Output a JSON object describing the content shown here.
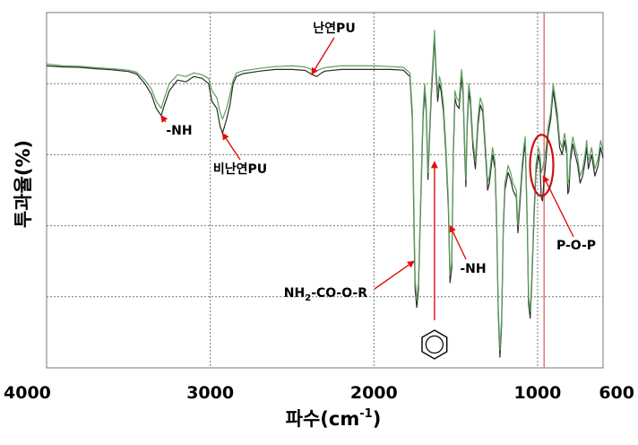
{
  "chart_data": {
    "type": "line",
    "title": "",
    "xlabel": "파수(cm-1)",
    "xlabel_parts": {
      "main": "파수(cm",
      "sup": "-1",
      "close": ")"
    },
    "ylabel": "투과율(%)",
    "xlim": [
      4000,
      600
    ],
    "x_reversed": true,
    "ylim": [
      0,
      100
    ],
    "grid": true,
    "xticks": [
      4000,
      3000,
      2000,
      1000,
      600
    ],
    "xtick_labels": [
      "4000",
      "3000",
      "2000",
      "1000",
      "600"
    ],
    "gridlines_x": [
      3000,
      2000,
      1000
    ],
    "gridlines_y": [
      20,
      40,
      60,
      80
    ],
    "reference_line": {
      "x": 960,
      "color": "#e08080"
    },
    "legend": "none",
    "series": [
      {
        "color": "#2a2a2a",
        "points": [
          [
            4000,
            85
          ],
          [
            3900,
            84.7
          ],
          [
            3800,
            84.6
          ],
          [
            3700,
            84.2
          ],
          [
            3600,
            83.9
          ],
          [
            3500,
            83.4
          ],
          [
            3450,
            82.7
          ],
          [
            3400,
            80
          ],
          [
            3360,
            77
          ],
          [
            3330,
            73
          ],
          [
            3300,
            71
          ],
          [
            3280,
            74
          ],
          [
            3250,
            78
          ],
          [
            3200,
            81
          ],
          [
            3150,
            80.5
          ],
          [
            3100,
            82
          ],
          [
            3050,
            81.5
          ],
          [
            3010,
            80
          ],
          [
            2990,
            75
          ],
          [
            2960,
            73
          ],
          [
            2940,
            68
          ],
          [
            2925,
            66
          ],
          [
            2900,
            70
          ],
          [
            2880,
            74
          ],
          [
            2860,
            80
          ],
          [
            2840,
            82
          ],
          [
            2800,
            82.8
          ],
          [
            2700,
            83.5
          ],
          [
            2600,
            84
          ],
          [
            2500,
            84
          ],
          [
            2420,
            83.7
          ],
          [
            2380,
            82.6
          ],
          [
            2350,
            82
          ],
          [
            2320,
            83
          ],
          [
            2300,
            83.5
          ],
          [
            2200,
            84
          ],
          [
            2100,
            84
          ],
          [
            2000,
            84
          ],
          [
            1900,
            84
          ],
          [
            1820,
            83.8
          ],
          [
            1780,
            82
          ],
          [
            1765,
            70
          ],
          [
            1755,
            40
          ],
          [
            1748,
            22
          ],
          [
            1738,
            17
          ],
          [
            1728,
            22
          ],
          [
            1712,
            50
          ],
          [
            1700,
            70
          ],
          [
            1690,
            78
          ],
          [
            1680,
            72
          ],
          [
            1670,
            53
          ],
          [
            1660,
            65
          ],
          [
            1650,
            76
          ],
          [
            1640,
            84
          ],
          [
            1630,
            93
          ],
          [
            1620,
            82
          ],
          [
            1610,
            75
          ],
          [
            1600,
            80
          ],
          [
            1590,
            78
          ],
          [
            1575,
            72
          ],
          [
            1560,
            60
          ],
          [
            1545,
            45
          ],
          [
            1535,
            24
          ],
          [
            1525,
            28
          ],
          [
            1515,
            60
          ],
          [
            1505,
            76
          ],
          [
            1495,
            74
          ],
          [
            1480,
            73
          ],
          [
            1465,
            82
          ],
          [
            1455,
            77
          ],
          [
            1445,
            60
          ],
          [
            1438,
            51
          ],
          [
            1430,
            68
          ],
          [
            1420,
            78
          ],
          [
            1410,
            74
          ],
          [
            1395,
            62
          ],
          [
            1380,
            56
          ],
          [
            1365,
            68
          ],
          [
            1350,
            74
          ],
          [
            1335,
            72
          ],
          [
            1315,
            58
          ],
          [
            1305,
            50
          ],
          [
            1295,
            52
          ],
          [
            1275,
            60
          ],
          [
            1260,
            56
          ],
          [
            1250,
            40
          ],
          [
            1240,
            15
          ],
          [
            1230,
            3
          ],
          [
            1220,
            12
          ],
          [
            1210,
            38
          ],
          [
            1200,
            50
          ],
          [
            1180,
            55
          ],
          [
            1165,
            53
          ],
          [
            1150,
            50
          ],
          [
            1130,
            48
          ],
          [
            1120,
            38
          ],
          [
            1110,
            45
          ],
          [
            1095,
            55
          ],
          [
            1085,
            60
          ],
          [
            1075,
            63
          ],
          [
            1062,
            38
          ],
          [
            1055,
            18
          ],
          [
            1045,
            14
          ],
          [
            1035,
            24
          ],
          [
            1022,
            42
          ],
          [
            1010,
            55
          ],
          [
            995,
            60
          ],
          [
            985,
            57
          ],
          [
            978,
            48
          ],
          [
            970,
            47
          ],
          [
            962,
            52
          ],
          [
            950,
            58
          ],
          [
            935,
            66
          ],
          [
            920,
            70
          ],
          [
            905,
            78
          ],
          [
            895,
            75
          ],
          [
            880,
            70
          ],
          [
            865,
            62
          ],
          [
            850,
            60
          ],
          [
            835,
            64
          ],
          [
            822,
            60
          ],
          [
            815,
            49
          ],
          [
            808,
            50
          ],
          [
            800,
            58
          ],
          [
            785,
            63
          ],
          [
            770,
            60
          ],
          [
            755,
            57
          ],
          [
            740,
            52
          ],
          [
            725,
            54
          ],
          [
            710,
            58
          ],
          [
            700,
            62
          ],
          [
            690,
            56
          ],
          [
            670,
            60
          ],
          [
            650,
            54
          ],
          [
            630,
            57
          ],
          [
            615,
            62
          ],
          [
            600,
            59
          ]
        ]
      },
      {
        "color": "#5fa05f",
        "points": [
          [
            4000,
            85.5
          ],
          [
            3900,
            85
          ],
          [
            3800,
            84.9
          ],
          [
            3700,
            84.5
          ],
          [
            3600,
            84.2
          ],
          [
            3500,
            83.8
          ],
          [
            3450,
            83.2
          ],
          [
            3400,
            81
          ],
          [
            3360,
            78.5
          ],
          [
            3330,
            75
          ],
          [
            3300,
            73
          ],
          [
            3280,
            76
          ],
          [
            3250,
            80
          ],
          [
            3200,
            82.5
          ],
          [
            3150,
            82
          ],
          [
            3100,
            83
          ],
          [
            3050,
            82.5
          ],
          [
            3010,
            81.5
          ],
          [
            2990,
            78
          ],
          [
            2960,
            76
          ],
          [
            2940,
            72
          ],
          [
            2925,
            70
          ],
          [
            2900,
            73
          ],
          [
            2880,
            77
          ],
          [
            2860,
            81
          ],
          [
            2840,
            83
          ],
          [
            2800,
            83.6
          ],
          [
            2700,
            84.3
          ],
          [
            2600,
            84.8
          ],
          [
            2500,
            85
          ],
          [
            2420,
            84.7
          ],
          [
            2380,
            84
          ],
          [
            2350,
            83.6
          ],
          [
            2320,
            84.2
          ],
          [
            2300,
            84.5
          ],
          [
            2200,
            85
          ],
          [
            2100,
            85
          ],
          [
            2000,
            85
          ],
          [
            1900,
            84.8
          ],
          [
            1820,
            84.6
          ],
          [
            1780,
            83
          ],
          [
            1765,
            72
          ],
          [
            1755,
            44
          ],
          [
            1748,
            25
          ],
          [
            1738,
            19
          ],
          [
            1728,
            24
          ],
          [
            1712,
            52
          ],
          [
            1700,
            72
          ],
          [
            1690,
            80
          ],
          [
            1680,
            74
          ],
          [
            1670,
            55
          ],
          [
            1660,
            67
          ],
          [
            1650,
            78
          ],
          [
            1640,
            86
          ],
          [
            1630,
            95
          ],
          [
            1620,
            84
          ],
          [
            1610,
            77
          ],
          [
            1600,
            82
          ],
          [
            1590,
            80
          ],
          [
            1575,
            74
          ],
          [
            1560,
            62
          ],
          [
            1545,
            47
          ],
          [
            1535,
            26
          ],
          [
            1525,
            30
          ],
          [
            1515,
            62
          ],
          [
            1505,
            78
          ],
          [
            1495,
            76
          ],
          [
            1480,
            75
          ],
          [
            1465,
            84
          ],
          [
            1455,
            79
          ],
          [
            1445,
            62
          ],
          [
            1438,
            53
          ],
          [
            1430,
            70
          ],
          [
            1420,
            80
          ],
          [
            1410,
            76
          ],
          [
            1395,
            64
          ],
          [
            1380,
            58
          ],
          [
            1365,
            70
          ],
          [
            1350,
            76
          ],
          [
            1335,
            74
          ],
          [
            1315,
            60
          ],
          [
            1305,
            52
          ],
          [
            1295,
            54
          ],
          [
            1275,
            62
          ],
          [
            1260,
            58
          ],
          [
            1250,
            42
          ],
          [
            1240,
            17
          ],
          [
            1230,
            5
          ],
          [
            1220,
            14
          ],
          [
            1210,
            40
          ],
          [
            1200,
            52
          ],
          [
            1180,
            57
          ],
          [
            1165,
            55
          ],
          [
            1150,
            52
          ],
          [
            1130,
            50
          ],
          [
            1120,
            40
          ],
          [
            1110,
            47
          ],
          [
            1095,
            57
          ],
          [
            1085,
            62
          ],
          [
            1075,
            65
          ],
          [
            1062,
            40
          ],
          [
            1055,
            20
          ],
          [
            1045,
            16
          ],
          [
            1035,
            26
          ],
          [
            1022,
            44
          ],
          [
            1010,
            57
          ],
          [
            995,
            62
          ],
          [
            985,
            60
          ],
          [
            978,
            55
          ],
          [
            970,
            56
          ],
          [
            962,
            58
          ],
          [
            950,
            61
          ],
          [
            935,
            68
          ],
          [
            920,
            72
          ],
          [
            905,
            80
          ],
          [
            895,
            77
          ],
          [
            880,
            72
          ],
          [
            865,
            64
          ],
          [
            850,
            62
          ],
          [
            835,
            66
          ],
          [
            822,
            62
          ],
          [
            815,
            52
          ],
          [
            808,
            53
          ],
          [
            800,
            60
          ],
          [
            785,
            65
          ],
          [
            770,
            62
          ],
          [
            755,
            59
          ],
          [
            740,
            54
          ],
          [
            725,
            56
          ],
          [
            710,
            60
          ],
          [
            700,
            64
          ],
          [
            690,
            58
          ],
          [
            670,
            62
          ],
          [
            650,
            56
          ],
          [
            630,
            59
          ],
          [
            615,
            64
          ],
          [
            600,
            61
          ]
        ]
      }
    ],
    "annotations": [
      {
        "text": "난연PU",
        "points_to": [
          2380,
          82.6
        ]
      },
      {
        "text": "-NH",
        "points_to": [
          3300,
          71
        ]
      },
      {
        "text": "비난연PU",
        "points_to": [
          2925,
          66
        ]
      },
      {
        "text": "NH2-CO-O-R",
        "text_main": "NH",
        "text_sub": "2",
        "text_rest": "-CO-O-R",
        "points_to": [
          1755,
          30
        ]
      },
      {
        "text": "-NH",
        "points_to": [
          1535,
          40
        ]
      },
      {
        "text": "P-O-P",
        "points_to": [
          965,
          54
        ]
      }
    ],
    "highlight_ellipse": {
      "center": [
        975,
        57
      ],
      "color": "#cc1111"
    },
    "benzene_marker": {
      "x": 1630,
      "points_to": [
        1630,
        58
      ]
    }
  }
}
